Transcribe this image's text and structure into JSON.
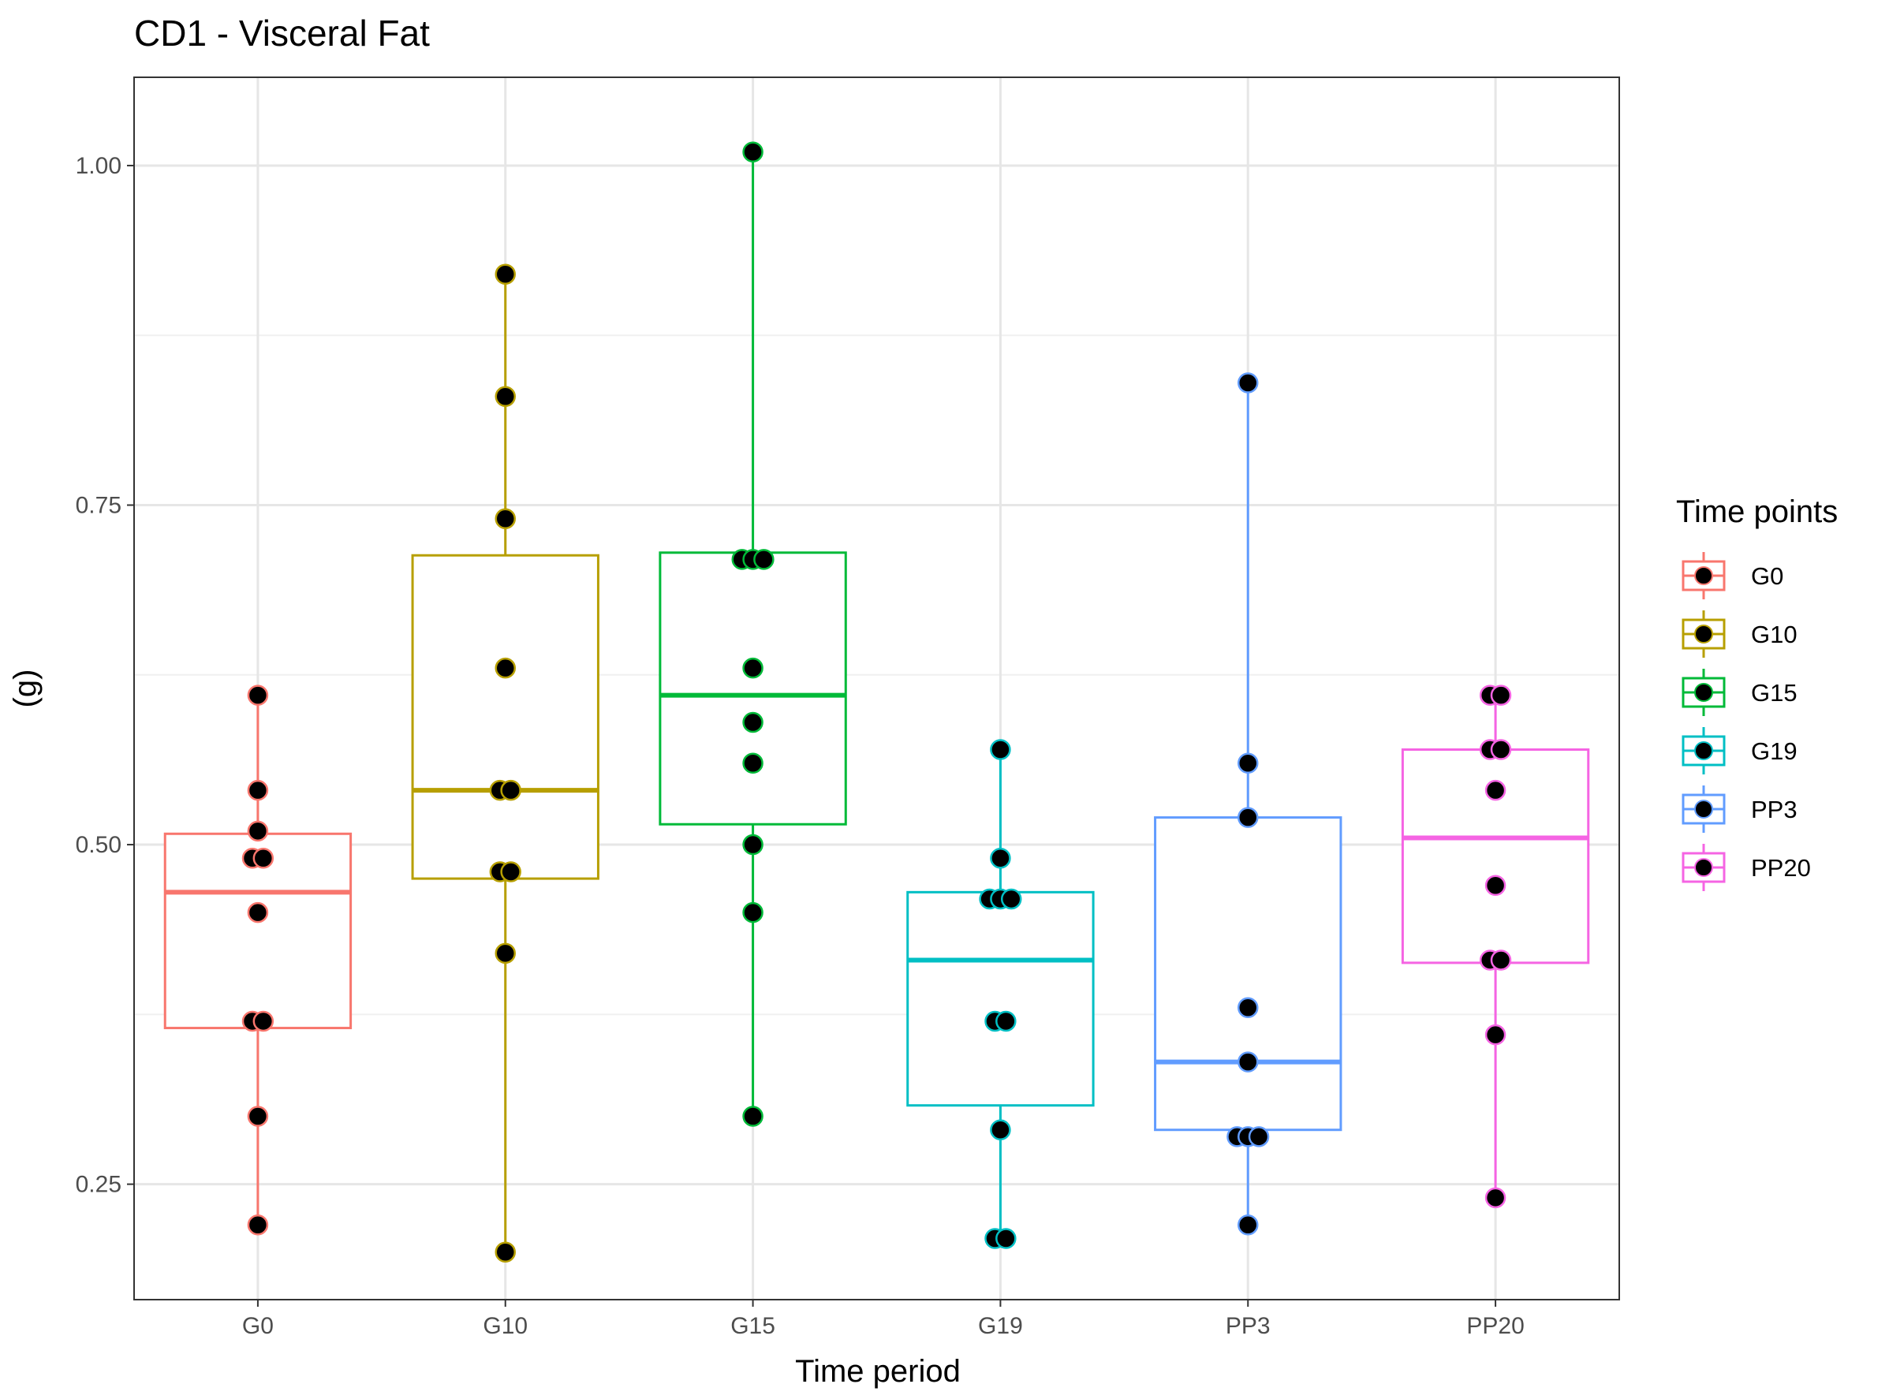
{
  "chart_data": {
    "type": "box",
    "title": "CD1 - Visceral Fat",
    "xlabel": "Time period",
    "ylabel": "(g)",
    "ylim": [
      0.165,
      1.065
    ],
    "yticks": [
      0.25,
      0.5,
      0.75,
      1.0
    ],
    "ytick_labels": [
      "0.25",
      "0.50",
      "0.75",
      "1.00"
    ],
    "grid": true,
    "legend": {
      "title": "Time points",
      "position": "right",
      "entries": [
        "G0",
        "G10",
        "G15",
        "G19",
        "PP3",
        "PP20"
      ]
    },
    "categories": [
      "G0",
      "G10",
      "G15",
      "G19",
      "PP3",
      "PP20"
    ],
    "series": [
      {
        "name": "G0",
        "color": "#F8766D",
        "whisker_low": 0.22,
        "q1": 0.365,
        "median": 0.465,
        "q3": 0.508,
        "whisker_high": 0.61,
        "points": [
          0.61,
          0.54,
          0.51,
          0.49,
          0.49,
          0.45,
          0.37,
          0.37,
          0.3,
          0.22
        ]
      },
      {
        "name": "G10",
        "color": "#B79F00",
        "whisker_low": 0.2,
        "q1": 0.475,
        "median": 0.54,
        "q3": 0.713,
        "whisker_high": 0.92,
        "points": [
          0.92,
          0.83,
          0.74,
          0.63,
          0.54,
          0.54,
          0.48,
          0.48,
          0.42,
          0.2
        ]
      },
      {
        "name": "G15",
        "color": "#00BA38",
        "whisker_low": 0.3,
        "q1": 0.515,
        "median": 0.61,
        "q3": 0.715,
        "whisker_high": 1.01,
        "points": [
          1.01,
          0.71,
          0.71,
          0.71,
          0.63,
          0.59,
          0.56,
          0.5,
          0.45,
          0.3
        ]
      },
      {
        "name": "G19",
        "color": "#00BFC4",
        "whisker_low": 0.21,
        "q1": 0.308,
        "median": 0.415,
        "q3": 0.465,
        "whisker_high": 0.57,
        "points": [
          0.57,
          0.49,
          0.46,
          0.46,
          0.46,
          0.37,
          0.37,
          0.29,
          0.21,
          0.21
        ]
      },
      {
        "name": "PP3",
        "color": "#619CFF",
        "whisker_low": 0.22,
        "q1": 0.29,
        "median": 0.34,
        "q3": 0.52,
        "whisker_high": 0.84,
        "points": [
          0.84,
          0.56,
          0.52,
          0.38,
          0.34,
          0.285,
          0.285,
          0.285,
          0.22
        ]
      },
      {
        "name": "PP20",
        "color": "#F564E3",
        "whisker_low": 0.24,
        "q1": 0.413,
        "median": 0.505,
        "q3": 0.57,
        "whisker_high": 0.61,
        "points": [
          0.61,
          0.61,
          0.57,
          0.57,
          0.54,
          0.47,
          0.415,
          0.415,
          0.36,
          0.24
        ]
      }
    ]
  }
}
